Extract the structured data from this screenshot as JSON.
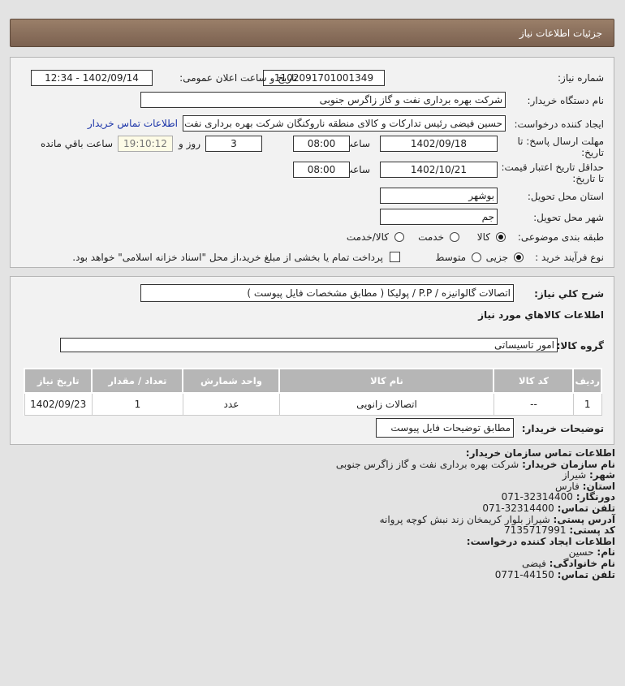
{
  "header": {
    "title": "جزئیات اطلاعات نیاز"
  },
  "form": {
    "need_number_label": "شماره نیاز:",
    "need_number": "1102091701001349",
    "announce_label": "تاریخ و ساعت اعلان عمومی:",
    "announce_value": "1402/09/14 - 12:34",
    "buyer_label": "نام دستگاه خریدار:",
    "buyer_value": "شرکت بهره برداری نفت و گاز زاگرس جنوبی",
    "creator_label": "ایجاد کننده درخواست:",
    "creator_value": "حسین فیضی رئیس تدارکات و کالای منطقه ناروکنگان شرکت بهره برداری نفت و",
    "contact_link": "اطلاعات تماس خریدار",
    "deadline_label": "مهلت ارسال پاسخ: تا تاریخ:",
    "deadline_date": "1402/09/18",
    "time_label": "ساعت",
    "deadline_time": "08:00",
    "days": "3",
    "days_label": "روز و",
    "remaining": "19:10:12",
    "remaining_label": "ساعت باقي مانده",
    "validity_label": "حداقل تاریخ اعتبار قیمت: تا تاریخ:",
    "validity_date": "1402/10/21",
    "validity_time": "08:00",
    "province_label": "استان محل تحویل:",
    "province": "بوشهر",
    "city_label": "شهر محل تحویل:",
    "city": "جم",
    "category_label": "طبقه بندی موضوعی:",
    "category_options": [
      "کالا",
      "خدمت",
      "کالا/خدمت"
    ],
    "process_label": "نوع فرآیند خرید :",
    "process_options": [
      "جزیی",
      "متوسط"
    ],
    "payment_note": "پرداخت تمام یا بخشی از مبلغ خرید،از محل \"اسناد خزانه اسلامی\" خواهد بود."
  },
  "summary": {
    "desc_label": "شرح كلي نياز:",
    "desc": "اتصالات گالوانیزه / P.P / پولیکا ( مطابق مشخصات فایل پیوست )",
    "goods_title": "اطلاعات کالاهاي مورد نياز",
    "group_label": "گروه کالا:",
    "group": "امور تاسیساتی",
    "table": {
      "headers": [
        "ردیف",
        "کد کالا",
        "نام کالا",
        "واحد شمارش",
        "تعداد / مقدار",
        "تاریخ نیاز"
      ],
      "rows": [
        [
          "1",
          "--",
          "اتصالات زانویی",
          "عدد",
          "1",
          "1402/09/23"
        ]
      ]
    },
    "notes_label": "توضیحات خریدار:",
    "notes": "مطابق توضیحات فایل پیوست"
  },
  "contact": {
    "title": "اطلاعات تماس سازمان خریدار:",
    "items": [
      {
        "k": "نام سازمان خریدار:",
        "v": "شرکت بهره برداری نفت و گاز زاگرس جنوبی"
      },
      {
        "k": "شهر:",
        "v": "شیراز"
      },
      {
        "k": "استان:",
        "v": "فارس"
      },
      {
        "k": "دورنگار:",
        "v": "071-32314400"
      },
      {
        "k": "تلفن تماس:",
        "v": "071-32314400"
      },
      {
        "k": "آدرس پستی:",
        "v": "شیراز بلوار کریمخان زند نبش کوچه پروانه"
      },
      {
        "k": "کد پستی:",
        "v": "7135717991"
      }
    ],
    "creator_title": "اطلاعات ایجاد کننده درخواست:",
    "creator": [
      {
        "k": "نام:",
        "v": "حسین"
      },
      {
        "k": "نام خانوادگی:",
        "v": "فیضی"
      },
      {
        "k": "تلفن تماس:",
        "v": "0771-44150"
      }
    ]
  }
}
